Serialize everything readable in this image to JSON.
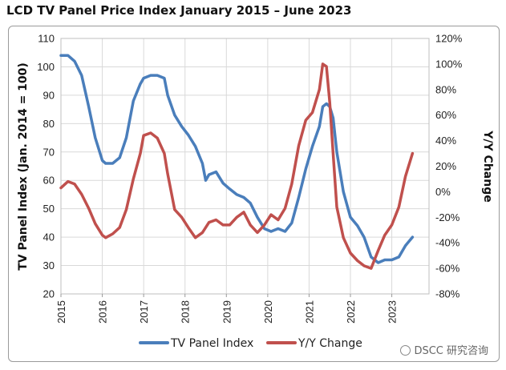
{
  "chart_data": {
    "type": "line",
    "title": "LCD TV Panel Price Index January 2015 – June 2023",
    "ylabel": "TV Panel Index (Jan. 2014 = 100)",
    "y2label": "Y/Y Change",
    "x_ticks": [
      "2015",
      "2016",
      "2017",
      "2018",
      "2019",
      "2020",
      "2021",
      "2022",
      "2023"
    ],
    "ylim": [
      20,
      110
    ],
    "y_ticks": [
      "20",
      "30",
      "40",
      "50",
      "60",
      "70",
      "80",
      "90",
      "100",
      "110"
    ],
    "y2lim": [
      -80,
      120
    ],
    "y2_ticks": [
      "-80%",
      "-60%",
      "-40%",
      "-20%",
      "0%",
      "20%",
      "40%",
      "60%",
      "80%",
      "100%",
      "120%"
    ],
    "legend": "bottom",
    "series": [
      {
        "name": "TV Panel Index",
        "axis": "left",
        "color": "#4a7ebb",
        "x": [
          2015.0,
          2015.17,
          2015.33,
          2015.5,
          2015.67,
          2015.83,
          2016.0,
          2016.08,
          2016.25,
          2016.42,
          2016.58,
          2016.75,
          2016.92,
          2017.0,
          2017.17,
          2017.33,
          2017.5,
          2017.58,
          2017.75,
          2017.92,
          2018.08,
          2018.25,
          2018.42,
          2018.5,
          2018.58,
          2018.75,
          2018.92,
          2019.08,
          2019.25,
          2019.42,
          2019.58,
          2019.75,
          2019.92,
          2020.08,
          2020.25,
          2020.42,
          2020.58,
          2020.75,
          2020.92,
          2021.08,
          2021.25,
          2021.33,
          2021.42,
          2021.5,
          2021.58,
          2021.67,
          2021.83,
          2022.0,
          2022.17,
          2022.33,
          2022.5,
          2022.67,
          2022.83,
          2023.0,
          2023.17,
          2023.33,
          2023.5
        ],
        "values": [
          104,
          104,
          102,
          97,
          86,
          75,
          67,
          66,
          66,
          68,
          75,
          88,
          94,
          96,
          97,
          97,
          96,
          90,
          83,
          79,
          76,
          72,
          66,
          60,
          62,
          63,
          59,
          57,
          55,
          54,
          52,
          47,
          43,
          42,
          43,
          42,
          45,
          54,
          64,
          72,
          79,
          86,
          87,
          86,
          82,
          70,
          56,
          47,
          44,
          40,
          33,
          31,
          32,
          32,
          33,
          37,
          40
        ]
      },
      {
        "name": "Y/Y Change",
        "axis": "right",
        "color": "#c0504d",
        "x": [
          2015.0,
          2015.17,
          2015.33,
          2015.5,
          2015.67,
          2015.83,
          2016.0,
          2016.08,
          2016.25,
          2016.42,
          2016.58,
          2016.75,
          2016.92,
          2017.0,
          2017.17,
          2017.33,
          2017.5,
          2017.58,
          2017.75,
          2017.92,
          2018.08,
          2018.25,
          2018.42,
          2018.5,
          2018.58,
          2018.75,
          2018.92,
          2019.08,
          2019.25,
          2019.42,
          2019.58,
          2019.75,
          2019.92,
          2020.08,
          2020.25,
          2020.42,
          2020.58,
          2020.75,
          2020.92,
          2021.08,
          2021.25,
          2021.33,
          2021.42,
          2021.5,
          2021.58,
          2021.67,
          2021.83,
          2022.0,
          2022.17,
          2022.33,
          2022.5,
          2022.67,
          2022.83,
          2023.0,
          2023.17,
          2023.33,
          2023.5
        ],
        "values": [
          3,
          8,
          6,
          -2,
          -13,
          -25,
          -34,
          -36,
          -33,
          -28,
          -14,
          10,
          30,
          44,
          46,
          42,
          30,
          14,
          -14,
          -20,
          -28,
          -36,
          -32,
          -28,
          -24,
          -22,
          -26,
          -26,
          -20,
          -16,
          -26,
          -32,
          -26,
          -18,
          -22,
          -13,
          6,
          36,
          56,
          62,
          80,
          100,
          98,
          70,
          30,
          -12,
          -36,
          -48,
          -54,
          -58,
          -60,
          -46,
          -34,
          -26,
          -12,
          12,
          30
        ]
      }
    ]
  },
  "watermark": "DSCC 研究咨询"
}
